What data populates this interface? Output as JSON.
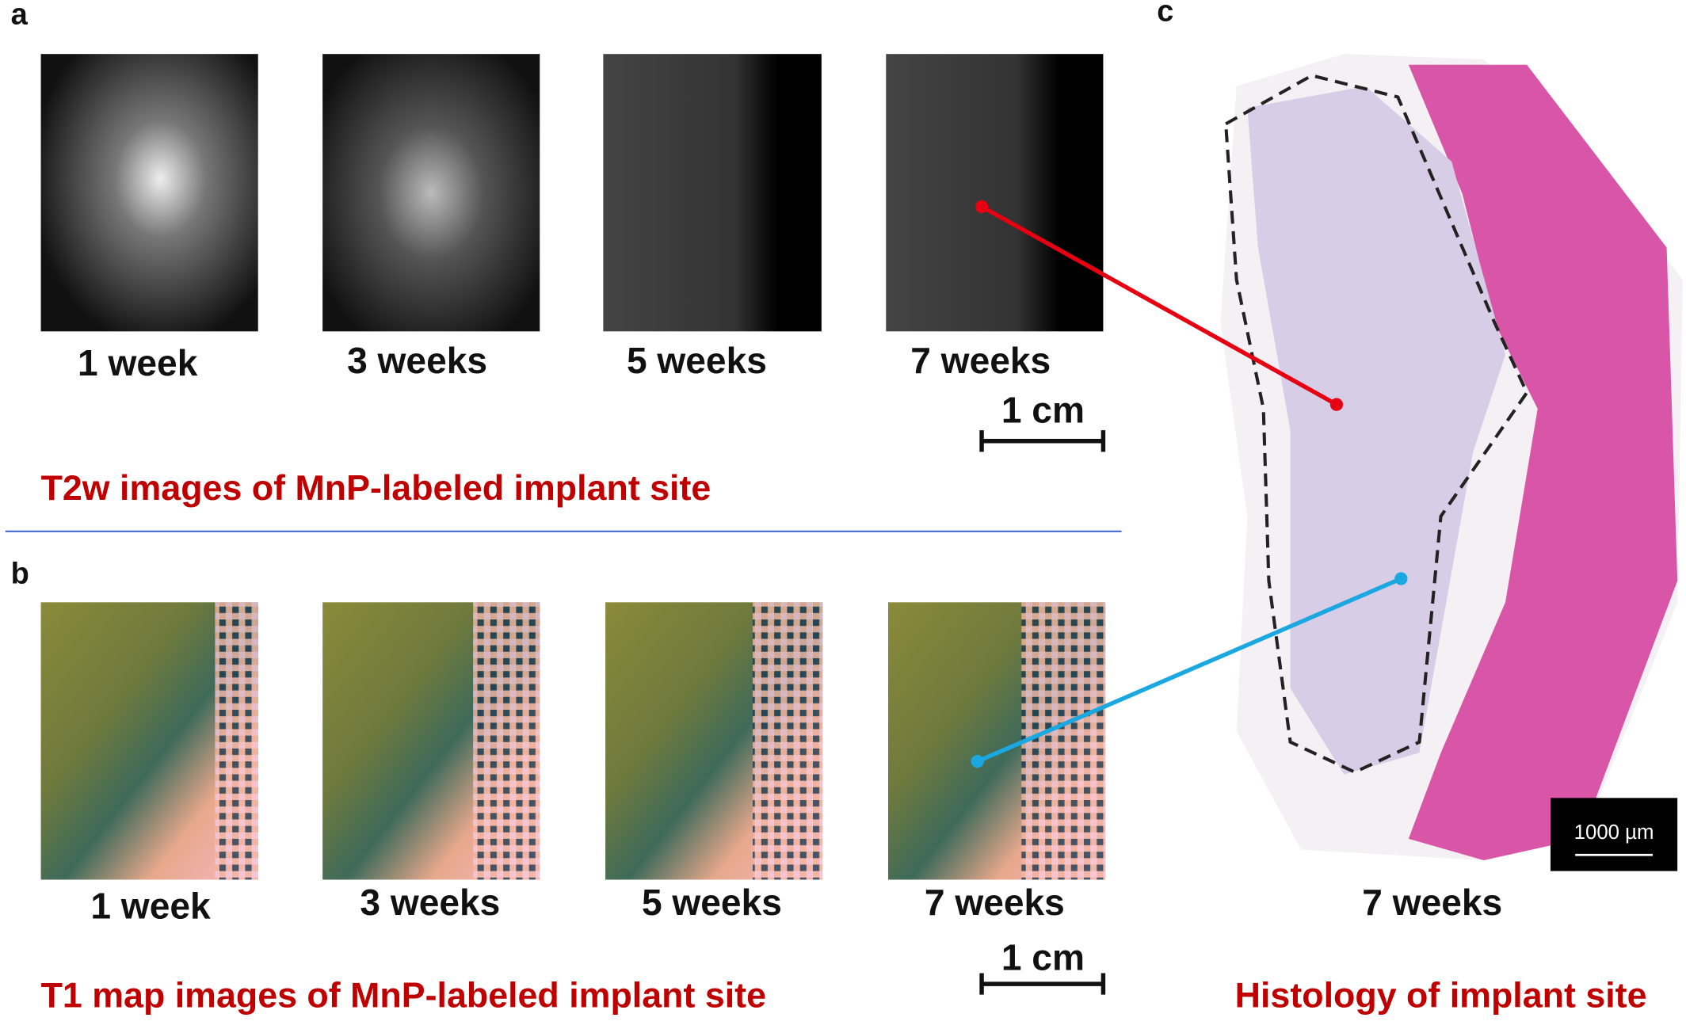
{
  "panels": [
    {
      "letter": "a",
      "image_labels": [
        "1 week",
        "3 weeks",
        "5 weeks",
        "7 weeks"
      ],
      "scale_bar": "1 cm",
      "caption": "T2w images of MnP-labeled implant site"
    },
    {
      "letter": "b",
      "image_labels": [
        "1 week",
        "3 weeks",
        "5 weeks",
        "7 weeks"
      ],
      "scale_bar": "1 cm",
      "caption": "T1 map images of MnP-labeled implant site"
    },
    {
      "letter": "c",
      "image_label": "7 weeks",
      "scale_bar": "1000 µm",
      "caption": "Histology of implant site"
    }
  ]
}
